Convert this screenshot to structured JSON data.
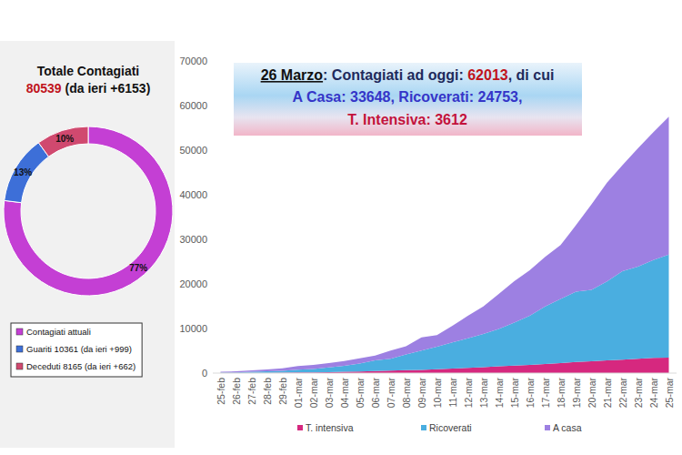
{
  "chart_data": [
    {
      "type": "pie",
      "title": "Totale Contagiati",
      "subtitle": "80539 (da ieri +6153)",
      "categories": [
        "Contagiati attuali",
        "Guariti 10361 (da ieri +999)",
        "Deceduti 8165 (da ieri +662)"
      ],
      "values": [
        77,
        13,
        10
      ],
      "value_labels": [
        "77%",
        "13%",
        "10%"
      ],
      "colors": [
        "#c43fd4",
        "#3d6fd8",
        "#d0496f"
      ],
      "data_labels": true,
      "legend": "bottom"
    },
    {
      "type": "area",
      "stacked": true,
      "annotations": [
        "26 Marzo: Contagiati ad oggi: 62013, di cui",
        "A Casa: 33648, Ricoverati: 24753,",
        "T. Intensiva: 3612"
      ],
      "categories": [
        "25-feb",
        "26-feb",
        "27-feb",
        "28-feb",
        "29-feb",
        "01-mar",
        "02-mar",
        "03-mar",
        "04-mar",
        "05-mar",
        "06-mar",
        "07-mar",
        "08-mar",
        "09-mar",
        "10-mar",
        "11-mar",
        "12-mar",
        "13-mar",
        "14-mar",
        "15-mar",
        "16-mar",
        "17-mar",
        "18-mar",
        "19-mar",
        "20-mar",
        "21-mar",
        "22-mar",
        "23-mar",
        "24-mar",
        "25-mar"
      ],
      "series": [
        {
          "name": "T. intensiva",
          "color": "#d6287f",
          "values": [
            35,
            36,
            56,
            64,
            105,
            140,
            166,
            229,
            295,
            351,
            462,
            567,
            650,
            733,
            877,
            1028,
            1153,
            1328,
            1518,
            1672,
            1851,
            2060,
            2257,
            2498,
            2655,
            2857,
            3009,
            3204,
            3396,
            3489
          ]
        },
        {
          "name": "Ricoverati",
          "color": "#4aaee0",
          "values": [
            114,
            128,
            248,
            345,
            401,
            639,
            742,
            1034,
            1346,
            1790,
            2394,
            2651,
            3557,
            4316,
            5038,
            5838,
            6650,
            7426,
            8372,
            9663,
            11025,
            12894,
            14363,
            15757,
            16020,
            17708,
            19846,
            20692,
            21937,
            23112
          ]
        },
        {
          "name": "A casa",
          "color": "#9d80e2",
          "values": [
            162,
            221,
            284,
            412,
            543,
            798,
            927,
            1000,
            1065,
            1155,
            1060,
            1843,
            1831,
            2936,
            2599,
            3724,
            5036,
            6201,
            7860,
            9268,
            10197,
            11108,
            12090,
            14935,
            19185,
            22116,
            23783,
            26522,
            28697,
            30920
          ]
        }
      ],
      "ylim": [
        0,
        70000
      ],
      "yticks": [
        0,
        10000,
        20000,
        30000,
        40000,
        50000,
        60000,
        70000
      ],
      "grid": false,
      "legend": "bottom"
    }
  ]
}
